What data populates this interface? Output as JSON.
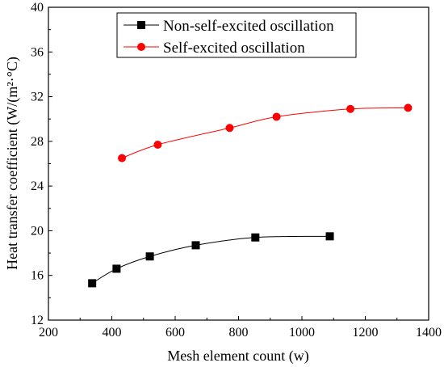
{
  "chart_data": {
    "type": "line",
    "xlabel": "Mesh element count (w)",
    "ylabel": "Heat transfer coefficient (W/(m²·°C)",
    "xlim": [
      200,
      1400
    ],
    "ylim": [
      12,
      40
    ],
    "x_ticks": [
      200,
      400,
      600,
      800,
      1000,
      1200,
      1400
    ],
    "y_ticks": [
      12,
      16,
      20,
      24,
      28,
      32,
      36,
      40
    ],
    "x_tick_labels": [
      "200",
      "400",
      "600",
      "800",
      "1000",
      "1200",
      "1400"
    ],
    "y_tick_labels": [
      "12",
      "16",
      "20",
      "24",
      "28",
      "32",
      "36",
      "40"
    ],
    "grid": false,
    "legend_position": "top-center",
    "series": [
      {
        "name": "Non-self-excited oscillation",
        "marker": "square",
        "color": "#000000",
        "x": [
          338,
          415,
          520,
          665,
          853,
          1088
        ],
        "y": [
          15.3,
          16.6,
          17.7,
          18.7,
          19.4,
          19.5
        ]
      },
      {
        "name": "Self-excited oscillation",
        "marker": "circle",
        "color": "#ff0000",
        "x": [
          432,
          545,
          772,
          920,
          1153,
          1335
        ],
        "y": [
          26.5,
          27.7,
          29.2,
          30.2,
          30.9,
          31.0
        ]
      }
    ]
  }
}
